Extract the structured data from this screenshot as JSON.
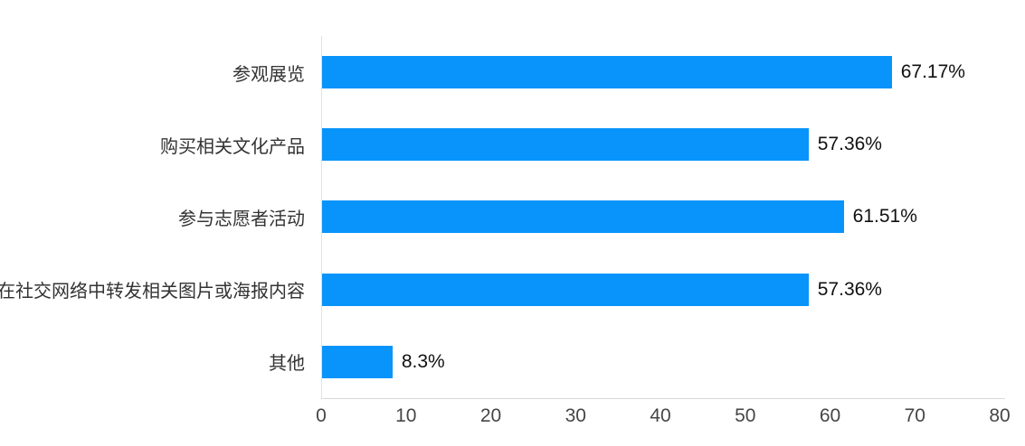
{
  "chart_data": {
    "type": "bar",
    "orientation": "horizontal",
    "title": "",
    "xlabel": "",
    "ylabel": "",
    "categories": [
      "参观展览",
      "购买相关文化产品",
      "参与志愿者活动",
      "在社交网络中转发相关图片或海报内容",
      "其他"
    ],
    "values": [
      67.17,
      57.36,
      61.51,
      57.36,
      8.3
    ],
    "value_labels": [
      "67.17%",
      "57.36%",
      "61.51%",
      "57.36%",
      "8.3%"
    ],
    "xlim": [
      0,
      80
    ],
    "xticks": [
      0,
      10,
      20,
      30,
      40,
      50,
      60,
      70,
      80
    ],
    "grid": false,
    "legend": "none",
    "background": "#ffffff"
  },
  "colors": {
    "bar": "#0894FB",
    "axis_line_vertical": "#dbe2ea",
    "axis_line_horizontal": "#d8d8d8",
    "category_label": "#333333",
    "value_label": "#111111",
    "tick_label": "#464646"
  }
}
